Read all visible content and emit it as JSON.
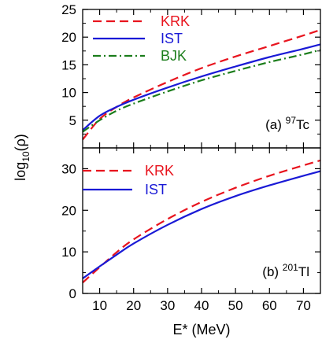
{
  "chart_data": [
    {
      "panel": "a",
      "type": "line",
      "annotation": {
        "prefix": "(a) ",
        "sup": "97",
        "element": "Tc"
      },
      "xlim": [
        5,
        75
      ],
      "ylim": [
        0,
        25
      ],
      "yticks": [
        5,
        10,
        15,
        20,
        25
      ],
      "yticks_minor": [
        2.5,
        7.5,
        12.5,
        17.5,
        22.5
      ],
      "grid": false,
      "legend_position": "top-left",
      "series": [
        {
          "name": "KRK",
          "color": "#e8141e",
          "dash": "dashed",
          "x": [
            5,
            10,
            15,
            20,
            30,
            40,
            50,
            60,
            70,
            75
          ],
          "y": [
            1.5,
            5.2,
            7.4,
            9.1,
            11.9,
            14.4,
            16.5,
            18.4,
            20.3,
            21.3
          ]
        },
        {
          "name": "IST",
          "color": "#1a1ad6",
          "dash": "solid",
          "x": [
            5,
            10,
            15,
            20,
            30,
            40,
            50,
            60,
            70,
            75
          ],
          "y": [
            3.2,
            5.8,
            7.4,
            8.7,
            10.9,
            12.9,
            14.7,
            16.4,
            17.9,
            18.7
          ]
        },
        {
          "name": "BJK",
          "color": "#1b7d1b",
          "dash": "dashdot",
          "x": [
            5,
            10,
            15,
            20,
            30,
            40,
            50,
            60,
            70,
            75
          ],
          "y": [
            2.9,
            5.0,
            6.7,
            8.0,
            10.2,
            12.2,
            13.9,
            15.5,
            16.9,
            17.7
          ]
        }
      ]
    },
    {
      "panel": "b",
      "type": "line",
      "annotation": {
        "prefix": "(b) ",
        "sup": "201",
        "element": "Tl"
      },
      "xlim": [
        5,
        75
      ],
      "ylim": [
        0,
        35
      ],
      "xticks": [
        10,
        20,
        30,
        40,
        50,
        60,
        70
      ],
      "xticks_minor": [
        15,
        25,
        35,
        45,
        55,
        65,
        75
      ],
      "yticks": [
        0,
        10,
        20,
        30
      ],
      "yticks_minor": [
        5,
        15,
        25
      ],
      "grid": false,
      "legend_position": "top-left",
      "series": [
        {
          "name": "KRK",
          "color": "#e8141e",
          "dash": "dashed",
          "x": [
            5,
            10,
            15,
            20,
            30,
            40,
            50,
            60,
            70,
            75
          ],
          "y": [
            2.6,
            6.3,
            9.9,
            13.0,
            17.9,
            22.0,
            25.4,
            28.3,
            30.8,
            32.0
          ]
        },
        {
          "name": "IST",
          "color": "#1a1ad6",
          "dash": "solid",
          "x": [
            5,
            10,
            15,
            20,
            30,
            40,
            50,
            60,
            70,
            75
          ],
          "y": [
            3.6,
            6.5,
            9.3,
            12.0,
            16.5,
            20.3,
            23.4,
            26.0,
            28.3,
            29.4
          ]
        }
      ]
    }
  ],
  "axes": {
    "xlabel": "E* (MeV)",
    "ylabel_main": "log",
    "ylabel_sub": "10",
    "ylabel_arg": "(ρ)"
  }
}
